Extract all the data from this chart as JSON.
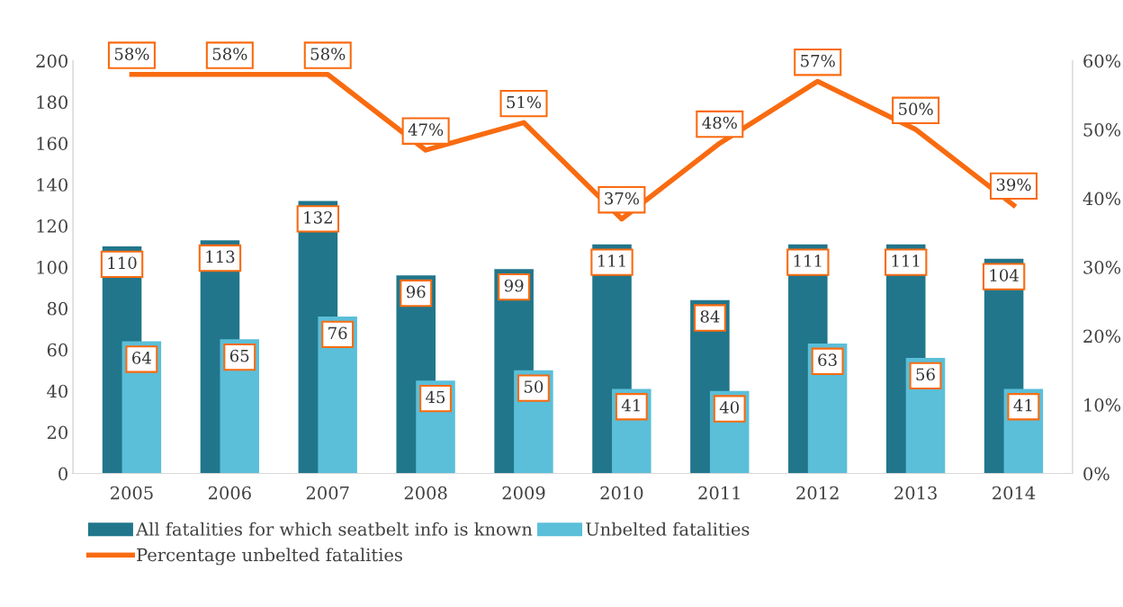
{
  "chart_data": {
    "type": "bar",
    "categories": [
      "2005",
      "2006",
      "2007",
      "2008",
      "2009",
      "2010",
      "2011",
      "2012",
      "2013",
      "2014"
    ],
    "series": [
      {
        "name": "All fatalities for which seatbelt info is known",
        "color": "#21768b",
        "values": [
          110,
          113,
          132,
          96,
          99,
          111,
          84,
          111,
          111,
          104
        ]
      },
      {
        "name": "Unbelted fatalities",
        "color": "#5bbfd9",
        "values": [
          64,
          65,
          76,
          45,
          50,
          41,
          40,
          63,
          56,
          41
        ]
      },
      {
        "name": "Percentage unbelted fatalities",
        "type": "line",
        "axis": "y2",
        "color": "#f96b10",
        "values": [
          58,
          58,
          58,
          47,
          51,
          37,
          48,
          57,
          50,
          39
        ],
        "value_labels": [
          "58%",
          "58%",
          "58%",
          "47%",
          "51%",
          "37%",
          "48%",
          "57%",
          "50%",
          "39%"
        ]
      }
    ],
    "ylim": [
      0,
      200
    ],
    "yticks": [
      0,
      20,
      40,
      60,
      80,
      100,
      120,
      140,
      160,
      180,
      200
    ],
    "y2lim": [
      0,
      60
    ],
    "y2ticks": [
      {
        "value": 0,
        "label": "0%"
      },
      {
        "value": 10,
        "label": "10%"
      },
      {
        "value": 20,
        "label": "20%"
      },
      {
        "value": 30,
        "label": "30%"
      },
      {
        "value": 40,
        "label": "40%"
      },
      {
        "value": 50,
        "label": "50%"
      },
      {
        "value": 60,
        "label": "60%"
      }
    ],
    "data_labels": true,
    "grid": false,
    "legend": "bottom",
    "line_style": "solid"
  }
}
